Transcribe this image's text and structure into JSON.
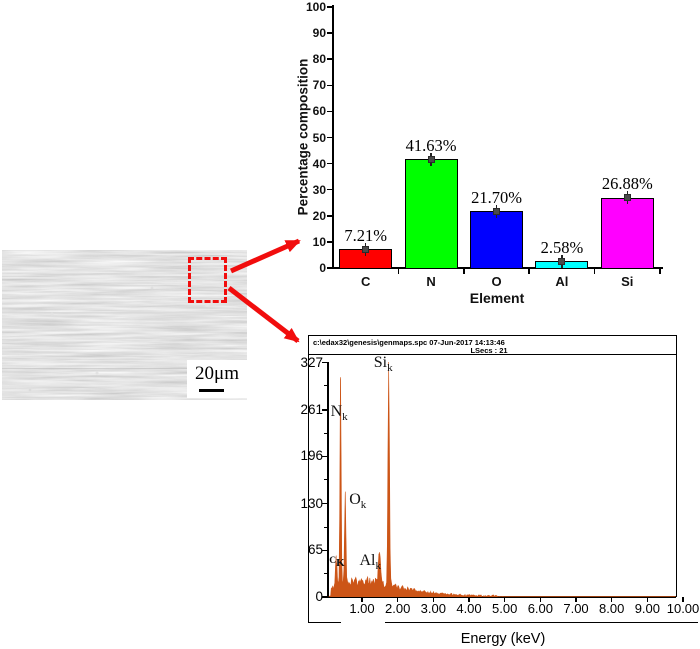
{
  "sem": {
    "scale_label": "20μm"
  },
  "chart_data": [
    {
      "type": "bar",
      "title": "",
      "categories": [
        "C",
        "N",
        "O",
        "Al",
        "Si"
      ],
      "values": [
        7.21,
        41.63,
        21.7,
        2.58,
        26.88
      ],
      "value_labels": [
        "7.21%",
        "41.63%",
        "21.70%",
        "2.58%",
        "26.88%"
      ],
      "bar_colors": [
        "#ff0000",
        "#00ff00",
        "#0000ff",
        "#00ffff",
        "#ff00ff"
      ],
      "xlabel": "Element",
      "ylabel": "Percentage composition",
      "ylim": [
        0,
        100
      ],
      "ytick_step": 10,
      "error_bars": true,
      "grid": false,
      "legend": "none"
    },
    {
      "type": "area",
      "header_line1": "c:\\edax32\\genesis\\genmaps.spc  07-Jun-2017 14:13:46",
      "header_line2": "LSecs : 21",
      "xlabel": "Energy (keV)",
      "xlim": [
        0,
        10
      ],
      "xtick_labels": [
        "1.00",
        "2.00",
        "3.00",
        "4.00",
        "5.00",
        "6.00",
        "7.00",
        "8.00",
        "9.00",
        "10.00"
      ],
      "ytick_labels": [
        "327",
        "261",
        "196",
        "130",
        "65",
        "0"
      ],
      "ylim": [
        0,
        327
      ],
      "color": "#cc5517",
      "grid": false,
      "peaks": [
        {
          "element": "C",
          "sub": "K",
          "energy_kev": 0.28,
          "counts": 40
        },
        {
          "element": "N",
          "sub": "k",
          "energy_kev": 0.4,
          "counts": 285
        },
        {
          "element": "O",
          "sub": "k",
          "energy_kev": 0.53,
          "counts": 122
        },
        {
          "element": "Al",
          "sub": "k",
          "energy_kev": 1.49,
          "counts": 38
        },
        {
          "element": "Si",
          "sub": "k",
          "energy_kev": 1.75,
          "counts": 308
        }
      ]
    }
  ]
}
